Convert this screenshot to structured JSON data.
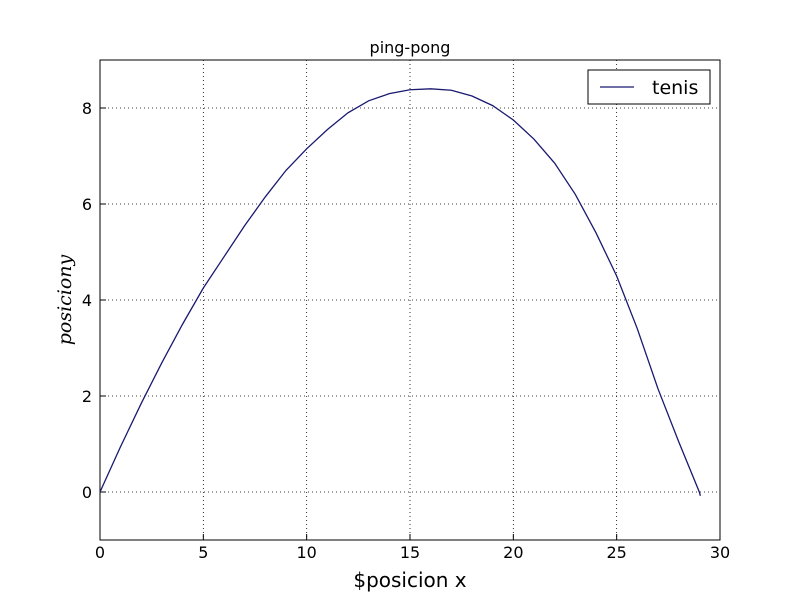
{
  "chart_data": {
    "type": "line",
    "title": "ping-pong",
    "x_label": "$posicion x",
    "y_label": "posiciony",
    "x": [
      0,
      1,
      2,
      3,
      4,
      5,
      6,
      7,
      8,
      9,
      10,
      11,
      12,
      13,
      14,
      15,
      16,
      17,
      18,
      19,
      20,
      21,
      22,
      23,
      24,
      25,
      26,
      27,
      28,
      29,
      29.05
    ],
    "series": [
      {
        "name": "tenis",
        "color": "#191970",
        "values": [
          0,
          0.95,
          1.85,
          2.7,
          3.5,
          4.25,
          4.9,
          5.55,
          6.15,
          6.7,
          7.15,
          7.55,
          7.9,
          8.15,
          8.3,
          8.38,
          8.4,
          8.37,
          8.25,
          8.05,
          7.75,
          7.35,
          6.85,
          6.2,
          5.4,
          4.5,
          3.4,
          2.15,
          1.05,
          0.0,
          -0.08
        ]
      }
    ],
    "xlim": [
      0,
      30
    ],
    "ylim": [
      -1,
      9
    ],
    "xticks": [
      0,
      5,
      10,
      15,
      20,
      25,
      30
    ],
    "yticks": [
      0,
      2,
      4,
      6,
      8
    ],
    "grid": true,
    "legend": "upper right"
  }
}
